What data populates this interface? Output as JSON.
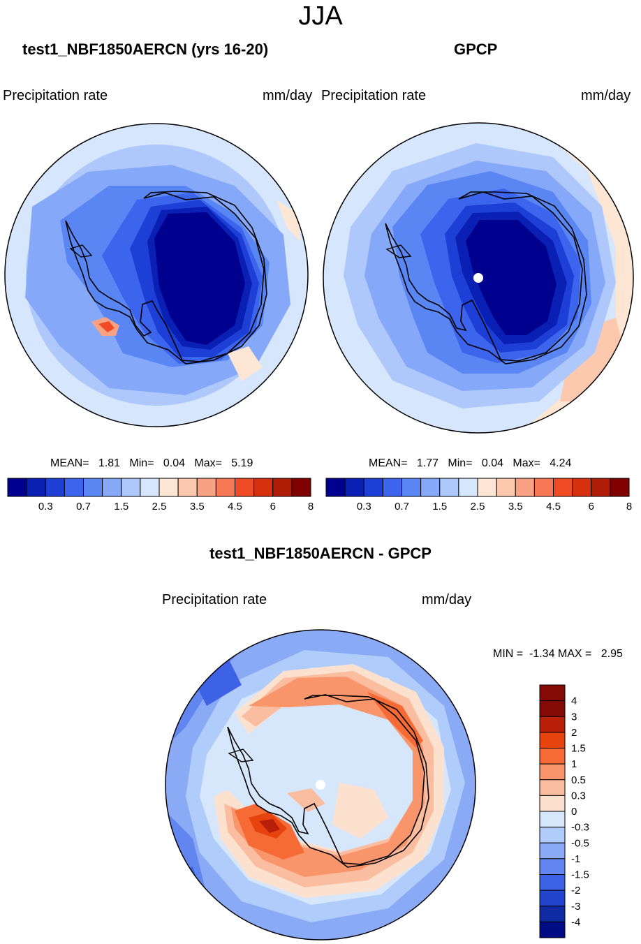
{
  "figure_title": "JJA",
  "chart_data": [
    {
      "type": "heatmap",
      "projection": "south polar stereographic",
      "title": "test1_NBF1850AERCN (yrs 16-20)",
      "variable": "Precipitation rate",
      "units": "mm/day",
      "stats": {
        "mean_label": "MEAN=",
        "mean": "1.81",
        "min_label": "Min=",
        "min": "0.04",
        "max_label": "Max=",
        "max": "5.19"
      },
      "levels": [
        0.2,
        0.3,
        0.5,
        0.7,
        1,
        1.5,
        2,
        2.5,
        3,
        3.5,
        4,
        4.5,
        5,
        6,
        7,
        8
      ],
      "tick_labels": [
        "0.3",
        "0.7",
        "1.5",
        "2.5",
        "3.5",
        "4.5",
        "6",
        "8"
      ]
    },
    {
      "type": "heatmap",
      "projection": "south polar stereographic",
      "title": "GPCP",
      "variable": "Precipitation rate",
      "units": "mm/day",
      "stats": {
        "mean_label": "MEAN=",
        "mean": "1.77",
        "min_label": "Min=",
        "min": "0.04",
        "max_label": "Max=",
        "max": "4.24"
      },
      "levels": [
        0.2,
        0.3,
        0.5,
        0.7,
        1,
        1.5,
        2,
        2.5,
        3,
        3.5,
        4,
        4.5,
        5,
        6,
        7,
        8
      ],
      "tick_labels": [
        "0.3",
        "0.7",
        "1.5",
        "2.5",
        "3.5",
        "4.5",
        "6",
        "8"
      ]
    },
    {
      "type": "heatmap",
      "projection": "south polar stereographic",
      "title": "test1_NBF1850AERCN - GPCP",
      "variable": "Precipitation rate",
      "units": "mm/day",
      "stats_text": "MIN =  -1.34 MAX =   2.95",
      "levels": [
        4,
        3,
        2,
        1.5,
        1,
        0.5,
        0.3,
        0,
        -0.3,
        -0.5,
        -1,
        -1.5,
        -2,
        -3,
        -4
      ],
      "tick_labels": [
        "4",
        "3",
        "2",
        "1.5",
        "1",
        "0.5",
        "0.3",
        "0",
        "-0.3",
        "-0.5",
        "-1",
        "-1.5",
        "-2",
        "-3",
        "-4"
      ]
    }
  ],
  "colors": {
    "seq": [
      "#00008f",
      "#0a20b4",
      "#1e3fd6",
      "#3c64ec",
      "#5a86f3",
      "#86a8f8",
      "#aec8fb",
      "#d5e6fd",
      "#fde6d3",
      "#fcc8ae",
      "#f9a283",
      "#f67854",
      "#ef4b25",
      "#d6300e",
      "#b01d07",
      "#800000"
    ],
    "diff": [
      "#850b07",
      "#b8200a",
      "#e6430e",
      "#f56a35",
      "#f8956a",
      "#fbbd9f",
      "#fde1cf",
      "#d6e7fc",
      "#b0ccfa",
      "#8aaaf6",
      "#6186f0",
      "#3e62e6",
      "#2244cc",
      "#0e2ba4",
      "#000d85"
    ]
  }
}
